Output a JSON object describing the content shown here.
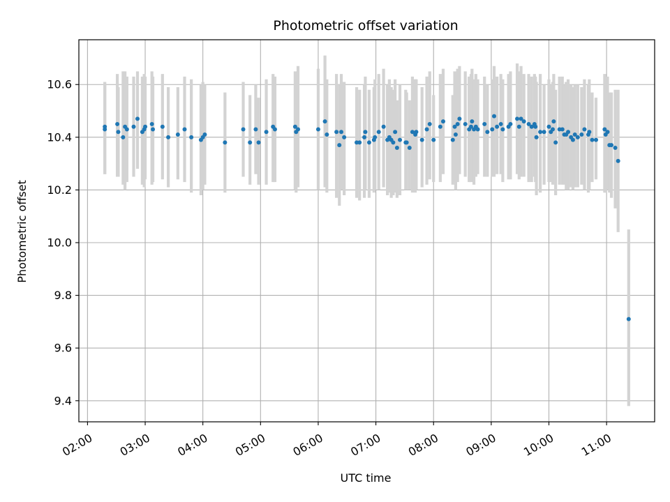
{
  "chart_data": {
    "type": "scatter",
    "title": "Photometric offset variation",
    "xlabel": "UTC time",
    "ylabel": "Photometric offset",
    "x_ticks": [
      "02:00",
      "03:00",
      "04:00",
      "05:00",
      "06:00",
      "07:00",
      "08:00",
      "09:00",
      "10:00",
      "11:00"
    ],
    "y_ticks": [
      "9.4",
      "9.6",
      "9.8",
      "10.0",
      "10.2",
      "10.4",
      "10.6"
    ],
    "xlim": [
      "01:51",
      "11:50"
    ],
    "ylim": [
      9.32,
      10.77
    ],
    "grid": true,
    "colors": {
      "points": "#1f77b4",
      "error_bars": "#d3d3d3",
      "grid": "#b0b0b0"
    },
    "series": [
      {
        "x": [
          "02:18",
          "02:18",
          "02:31",
          "02:32",
          "02:37",
          "02:39",
          "02:41",
          "02:48",
          "02:52",
          "02:57",
          "02:59",
          "03:00",
          "03:07",
          "03:08",
          "03:18",
          "03:24",
          "03:34",
          "03:41",
          "03:48",
          "03:58",
          "04:00",
          "04:02",
          "04:23",
          "04:42",
          "04:49",
          "04:55",
          "04:58",
          "05:06",
          "05:13",
          "05:15",
          "05:36",
          "05:37",
          "05:39",
          "06:00",
          "06:07",
          "06:09",
          "06:19",
          "06:22",
          "06:24",
          "06:27",
          "06:40",
          "06:43",
          "06:48",
          "06:49",
          "06:53",
          "06:58",
          "06:59",
          "07:03",
          "07:08",
          "07:12",
          "07:14",
          "07:16",
          "07:18",
          "07:20",
          "07:22",
          "07:25",
          "07:31",
          "07:32",
          "07:35",
          "07:38",
          "07:41",
          "07:42",
          "07:48",
          "07:53",
          "07:56",
          "08:00",
          "08:07",
          "08:10",
          "08:20",
          "08:22",
          "08:23",
          "08:25",
          "08:27",
          "08:33",
          "08:37",
          "08:39",
          "08:40",
          "08:42",
          "08:44",
          "08:46",
          "08:53",
          "08:56",
          "09:01",
          "09:03",
          "09:06",
          "09:10",
          "09:12",
          "09:18",
          "09:20",
          "09:27",
          "09:29",
          "09:31",
          "09:34",
          "09:39",
          "09:42",
          "09:45",
          "09:46",
          "09:47",
          "09:51",
          "09:55",
          "10:00",
          "10:02",
          "10:04",
          "10:05",
          "10:07",
          "10:11",
          "10:14",
          "10:16",
          "10:18",
          "10:20",
          "10:23",
          "10:25",
          "10:27",
          "10:30",
          "10:34",
          "10:37",
          "10:41",
          "10:42",
          "10:45",
          "10:49",
          "10:58",
          "10:59",
          "11:01",
          "11:03",
          "11:05",
          "11:09",
          "11:12",
          "11:23"
        ],
        "y": [
          10.43,
          10.44,
          10.45,
          10.42,
          10.4,
          10.44,
          10.43,
          10.44,
          10.47,
          10.42,
          10.43,
          10.44,
          10.45,
          10.43,
          10.44,
          10.4,
          10.41,
          10.43,
          10.4,
          10.39,
          10.4,
          10.41,
          10.38,
          10.43,
          10.38,
          10.43,
          10.38,
          10.42,
          10.44,
          10.43,
          10.44,
          10.42,
          10.43,
          10.43,
          10.46,
          10.41,
          10.42,
          10.37,
          10.42,
          10.4,
          10.38,
          10.38,
          10.4,
          10.42,
          10.38,
          10.39,
          10.4,
          10.42,
          10.44,
          10.39,
          10.4,
          10.39,
          10.38,
          10.42,
          10.36,
          10.39,
          10.38,
          10.38,
          10.36,
          10.42,
          10.41,
          10.42,
          10.39,
          10.43,
          10.45,
          10.39,
          10.44,
          10.46,
          10.39,
          10.44,
          10.41,
          10.45,
          10.47,
          10.45,
          10.43,
          10.44,
          10.46,
          10.43,
          10.44,
          10.43,
          10.45,
          10.42,
          10.43,
          10.48,
          10.44,
          10.45,
          10.43,
          10.44,
          10.45,
          10.47,
          10.44,
          10.47,
          10.46,
          10.45,
          10.44,
          10.45,
          10.44,
          10.4,
          10.42,
          10.42,
          10.44,
          10.42,
          10.43,
          10.46,
          10.38,
          10.43,
          10.43,
          10.41,
          10.41,
          10.42,
          10.4,
          10.39,
          10.41,
          10.4,
          10.41,
          10.43,
          10.41,
          10.42,
          10.39,
          10.39,
          10.43,
          10.41,
          10.42,
          10.37,
          10.37,
          10.36,
          10.31,
          9.71
        ],
        "error_low": [
          10.26,
          10.26,
          10.25,
          10.25,
          10.22,
          10.2,
          10.23,
          10.25,
          10.28,
          10.22,
          10.21,
          10.24,
          10.22,
          10.23,
          10.24,
          10.21,
          10.24,
          10.23,
          10.19,
          10.18,
          10.2,
          10.22,
          10.19,
          10.25,
          10.22,
          10.26,
          10.22,
          10.22,
          10.23,
          10.23,
          10.2,
          10.19,
          10.21,
          10.2,
          10.21,
          10.19,
          10.17,
          10.14,
          10.2,
          10.18,
          10.17,
          10.16,
          10.17,
          10.2,
          10.17,
          10.19,
          10.2,
          10.2,
          10.21,
          10.18,
          10.19,
          10.17,
          10.18,
          10.19,
          10.17,
          10.18,
          10.2,
          10.2,
          10.2,
          10.19,
          10.19,
          10.2,
          10.21,
          10.22,
          10.24,
          10.23,
          10.23,
          10.26,
          10.22,
          10.23,
          10.2,
          10.23,
          10.26,
          10.25,
          10.23,
          10.23,
          10.24,
          10.22,
          10.25,
          10.26,
          10.25,
          10.25,
          10.25,
          10.25,
          10.26,
          10.26,
          10.23,
          10.24,
          10.24,
          10.26,
          10.24,
          10.25,
          10.25,
          10.23,
          10.23,
          10.25,
          10.23,
          10.18,
          10.19,
          10.22,
          10.23,
          10.23,
          10.22,
          10.25,
          10.18,
          10.22,
          10.22,
          10.22,
          10.2,
          10.2,
          10.21,
          10.2,
          10.21,
          10.21,
          10.22,
          10.2,
          10.19,
          10.2,
          10.23,
          10.24,
          10.19,
          10.19,
          10.2,
          10.19,
          10.17,
          10.13,
          10.04,
          9.38
        ],
        "error_high": [
          10.6,
          10.61,
          10.64,
          10.59,
          10.65,
          10.65,
          10.63,
          10.63,
          10.65,
          10.63,
          10.64,
          10.63,
          10.65,
          10.63,
          10.64,
          10.59,
          10.59,
          10.63,
          10.62,
          10.6,
          10.61,
          10.6,
          10.57,
          10.61,
          10.56,
          10.6,
          10.55,
          10.62,
          10.64,
          10.63,
          10.65,
          10.64,
          10.67,
          10.66,
          10.71,
          10.62,
          10.64,
          10.6,
          10.64,
          10.61,
          10.59,
          10.58,
          10.6,
          10.63,
          10.58,
          10.59,
          10.62,
          10.64,
          10.66,
          10.6,
          10.62,
          10.59,
          10.58,
          10.62,
          10.54,
          10.6,
          10.58,
          10.57,
          10.54,
          10.63,
          10.62,
          10.62,
          10.59,
          10.63,
          10.65,
          10.56,
          10.64,
          10.66,
          10.56,
          10.65,
          10.61,
          10.66,
          10.67,
          10.65,
          10.63,
          10.64,
          10.66,
          10.62,
          10.64,
          10.62,
          10.63,
          10.6,
          10.62,
          10.67,
          10.63,
          10.64,
          10.62,
          10.64,
          10.65,
          10.68,
          10.65,
          10.67,
          10.64,
          10.64,
          10.63,
          10.64,
          10.63,
          10.61,
          10.64,
          10.6,
          10.62,
          10.6,
          10.61,
          10.64,
          10.58,
          10.63,
          10.63,
          10.6,
          10.61,
          10.62,
          10.6,
          10.59,
          10.6,
          10.6,
          10.59,
          10.62,
          10.6,
          10.62,
          10.57,
          10.55,
          10.64,
          10.62,
          10.63,
          10.57,
          10.57,
          10.58,
          10.58,
          10.05
        ]
      }
    ]
  }
}
